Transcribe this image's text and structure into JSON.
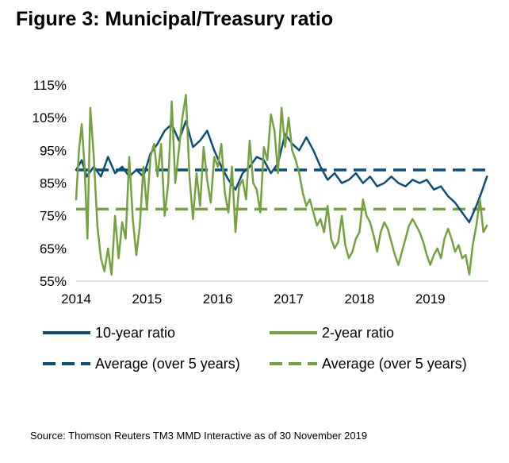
{
  "title": "Figure 3: Municipal/Treasury ratio",
  "source": "Source: Thomson Reuters TM3 MMD Interactive as of 30 November 2019",
  "colors": {
    "ten_year": "#0b4e7a",
    "two_year": "#74a23f"
  },
  "chart_data": {
    "type": "line",
    "title": "Figure 3: Municipal/Treasury ratio",
    "xlabel": "",
    "ylabel": "",
    "xlim": [
      2014.0,
      2019.82
    ],
    "ylim": [
      55,
      115
    ],
    "x_ticks": [
      2014,
      2015,
      2016,
      2017,
      2018,
      2019
    ],
    "x_tick_labels": [
      "2014",
      "2015",
      "2016",
      "2017",
      "2018",
      "2019"
    ],
    "y_ticks": [
      55,
      65,
      75,
      85,
      95,
      105,
      115
    ],
    "y_tick_labels": [
      "55%",
      "65%",
      "75%",
      "85%",
      "95%",
      "105%",
      "115%"
    ],
    "grid": false,
    "legend_position": "bottom",
    "series": [
      {
        "name": "10-year ratio",
        "style": "solid",
        "color": "#0b4e7a",
        "x": [
          2014.0,
          2014.08,
          2014.15,
          2014.25,
          2014.35,
          2014.45,
          2014.55,
          2014.65,
          2014.75,
          2014.85,
          2014.95,
          2015.05,
          2015.15,
          2015.25,
          2015.35,
          2015.45,
          2015.55,
          2015.65,
          2015.75,
          2015.85,
          2015.95,
          2016.05,
          2016.15,
          2016.25,
          2016.35,
          2016.45,
          2016.55,
          2016.65,
          2016.75,
          2016.85,
          2016.95,
          2017.05,
          2017.15,
          2017.25,
          2017.35,
          2017.45,
          2017.55,
          2017.65,
          2017.75,
          2017.85,
          2017.95,
          2018.05,
          2018.15,
          2018.25,
          2018.35,
          2018.45,
          2018.55,
          2018.65,
          2018.75,
          2018.85,
          2018.95,
          2019.05,
          2019.15,
          2019.25,
          2019.35,
          2019.45,
          2019.55,
          2019.65,
          2019.72,
          2019.8
        ],
        "y": [
          89,
          92,
          87,
          90,
          87,
          93,
          88,
          90,
          87,
          89,
          87,
          94,
          97,
          101,
          103,
          98,
          104,
          96,
          98,
          101,
          95,
          90,
          86,
          83,
          88,
          90,
          93,
          92,
          88,
          91,
          100,
          97,
          95,
          99,
          95,
          90,
          86,
          88,
          85,
          86,
          88,
          85,
          87,
          84,
          85,
          87,
          85,
          84,
          86,
          85,
          86,
          83,
          84,
          81,
          79,
          76,
          73,
          78,
          82,
          87
        ]
      },
      {
        "name": "2-year ratio",
        "style": "solid",
        "color": "#74a23f",
        "x": [
          2014.0,
          2014.04,
          2014.08,
          2014.12,
          2014.16,
          2014.2,
          2014.25,
          2014.3,
          2014.35,
          2014.4,
          2014.45,
          2014.5,
          2014.55,
          2014.6,
          2014.65,
          2014.7,
          2014.75,
          2014.8,
          2014.85,
          2014.9,
          2014.95,
          2015.0,
          2015.05,
          2015.1,
          2015.15,
          2015.2,
          2015.25,
          2015.3,
          2015.35,
          2015.4,
          2015.45,
          2015.5,
          2015.55,
          2015.6,
          2015.65,
          2015.7,
          2015.75,
          2015.8,
          2015.85,
          2015.9,
          2015.95,
          2016.0,
          2016.05,
          2016.1,
          2016.15,
          2016.2,
          2016.25,
          2016.3,
          2016.35,
          2016.4,
          2016.45,
          2016.5,
          2016.55,
          2016.6,
          2016.65,
          2016.7,
          2016.75,
          2016.8,
          2016.85,
          2016.9,
          2016.95,
          2017.0,
          2017.05,
          2017.1,
          2017.15,
          2017.2,
          2017.25,
          2017.3,
          2017.35,
          2017.4,
          2017.45,
          2017.5,
          2017.55,
          2017.6,
          2017.65,
          2017.7,
          2017.75,
          2017.8,
          2017.85,
          2017.9,
          2017.95,
          2018.0,
          2018.05,
          2018.1,
          2018.15,
          2018.2,
          2018.25,
          2018.3,
          2018.35,
          2018.4,
          2018.45,
          2018.5,
          2018.55,
          2018.6,
          2018.65,
          2018.7,
          2018.75,
          2018.8,
          2018.85,
          2018.9,
          2018.95,
          2019.0,
          2019.05,
          2019.1,
          2019.15,
          2019.2,
          2019.25,
          2019.3,
          2019.35,
          2019.4,
          2019.45,
          2019.5,
          2019.55,
          2019.6,
          2019.65,
          2019.7,
          2019.75,
          2019.8
        ],
        "y": [
          80,
          95,
          103,
          90,
          68,
          108,
          93,
          72,
          62,
          58,
          65,
          57,
          75,
          62,
          73,
          68,
          93,
          74,
          63,
          72,
          90,
          77,
          93,
          97,
          87,
          97,
          75,
          85,
          110,
          85,
          95,
          105,
          112,
          87,
          74,
          88,
          78,
          96,
          86,
          79,
          93,
          90,
          97,
          82,
          76,
          90,
          70,
          84,
          86,
          80,
          98,
          85,
          83,
          76,
          96,
          92,
          106,
          101,
          88,
          108,
          96,
          105,
          95,
          92,
          88,
          82,
          78,
          80,
          76,
          72,
          74,
          70,
          78,
          68,
          65,
          67,
          75,
          66,
          62,
          64,
          68,
          70,
          80,
          75,
          73,
          69,
          64,
          70,
          73,
          71,
          67,
          63,
          60,
          64,
          68,
          72,
          74,
          72,
          70,
          67,
          63,
          60,
          63,
          65,
          62,
          68,
          71,
          68,
          64,
          66,
          62,
          63,
          57,
          66,
          72,
          80,
          70,
          72
        ]
      },
      {
        "name": "Average (over 5 years)",
        "style": "dashed",
        "color": "#0b4e7a",
        "x": [
          2014.0,
          2019.82
        ],
        "y": [
          89,
          89
        ]
      },
      {
        "name": "Average (over 5 years)",
        "style": "dashed",
        "color": "#74a23f",
        "x": [
          2014.0,
          2019.82
        ],
        "y": [
          77,
          77
        ]
      }
    ]
  }
}
